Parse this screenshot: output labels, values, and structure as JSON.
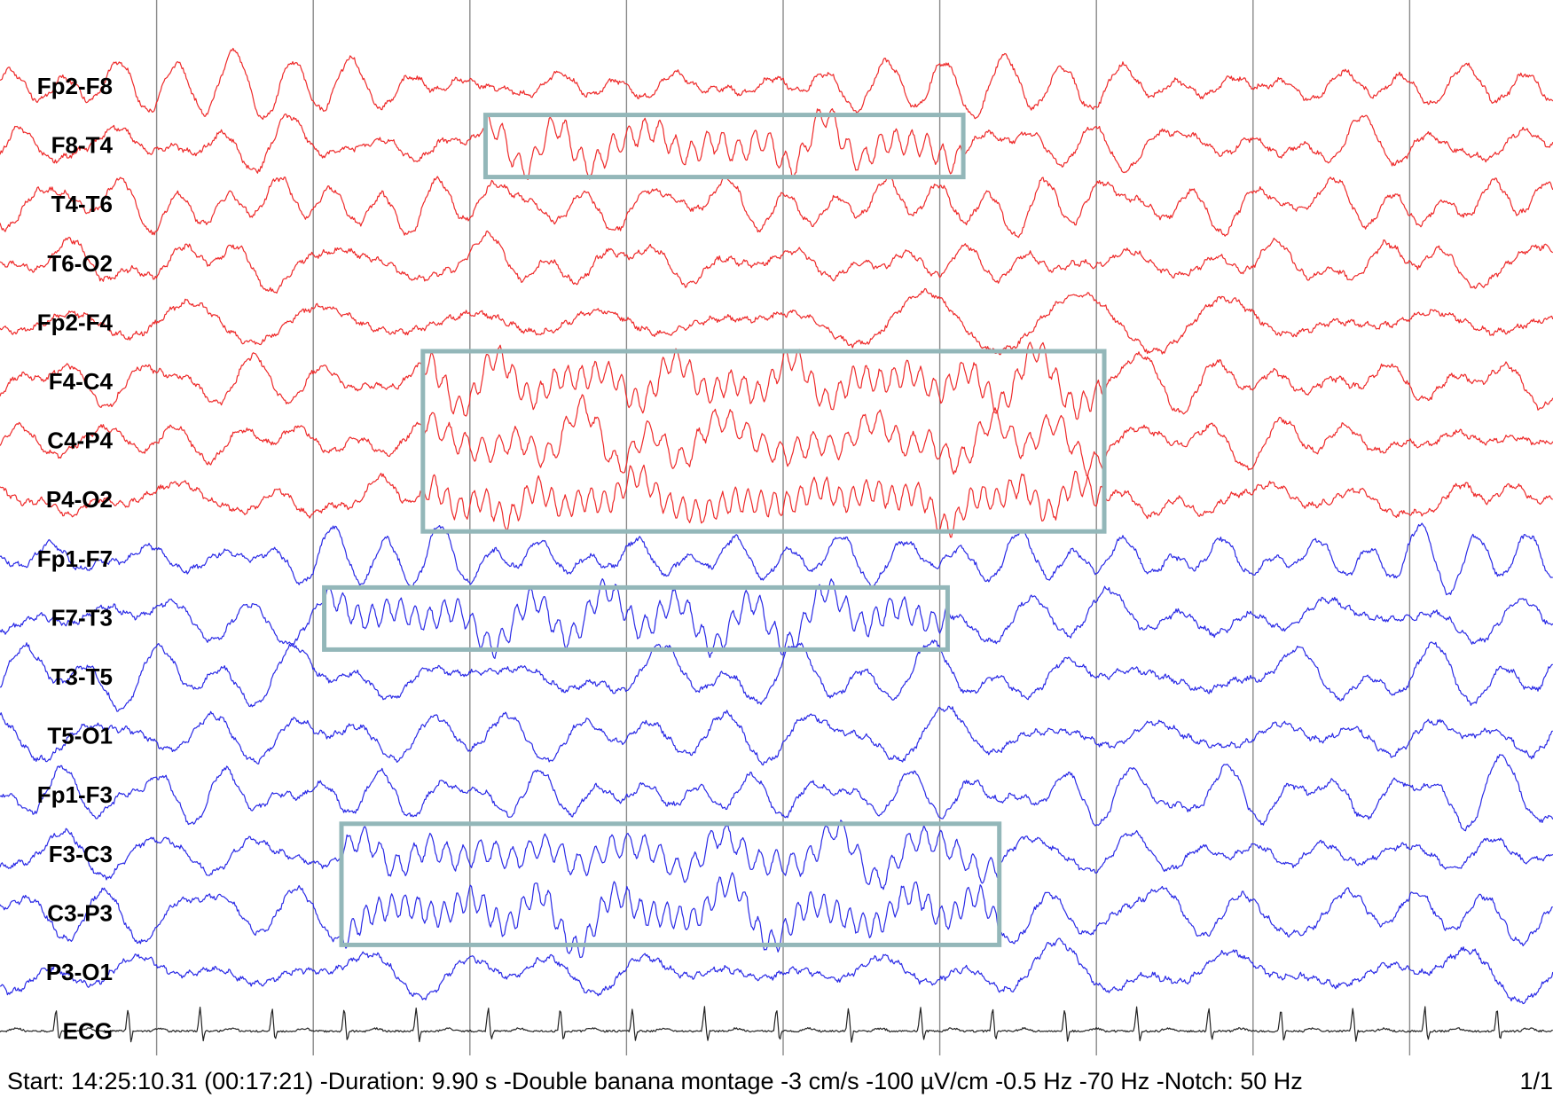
{
  "chart_data": {
    "type": "line",
    "title": "",
    "xlabel": "",
    "ylabel": "",
    "duration_s": 9.9,
    "grid": "vertical, 1 s",
    "colors": {
      "right_hemisphere": "#ee2a2a",
      "left_hemisphere": "#2a2ae6",
      "ecg": "#222222",
      "grid": "#8a8a8a",
      "highlight": "#93b7b9"
    },
    "channels": [
      {
        "name": "Fp2-F8",
        "group": "right"
      },
      {
        "name": "F8-T4",
        "group": "right"
      },
      {
        "name": "T4-T6",
        "group": "right"
      },
      {
        "name": "T6-O2",
        "group": "right"
      },
      {
        "name": "Fp2-F4",
        "group": "right"
      },
      {
        "name": "F4-C4",
        "group": "right"
      },
      {
        "name": "C4-P4",
        "group": "right"
      },
      {
        "name": "P4-O2",
        "group": "right"
      },
      {
        "name": "Fp1-F7",
        "group": "left"
      },
      {
        "name": "F7-T3",
        "group": "left"
      },
      {
        "name": "T3-T5",
        "group": "left"
      },
      {
        "name": "T5-O1",
        "group": "left"
      },
      {
        "name": "Fp1-F3",
        "group": "left"
      },
      {
        "name": "F3-C3",
        "group": "left"
      },
      {
        "name": "C3-P3",
        "group": "left"
      },
      {
        "name": "P3-O1",
        "group": "left"
      },
      {
        "name": "ECG",
        "group": "ecg"
      }
    ],
    "highlighted_segments": [
      {
        "channels": [
          "F8-T4"
        ],
        "start_s": 3.1,
        "end_s": 6.15
      },
      {
        "channels": [
          "F4-C4",
          "C4-P4",
          "P4-O2"
        ],
        "start_s": 2.7,
        "end_s": 7.05
      },
      {
        "channels": [
          "F7-T3"
        ],
        "start_s": 2.07,
        "end_s": 6.05
      },
      {
        "channels": [
          "F3-C3",
          "C3-P3"
        ],
        "start_s": 2.18,
        "end_s": 6.38
      }
    ]
  },
  "status_bar": {
    "text": "Start: 14:25:10.31 (00:17:21) -Duration: 9.90 s -Double banana montage -3 cm/s -100 µV/cm -0.5 Hz -70 Hz -Notch: 50 Hz",
    "page": "1/1"
  }
}
